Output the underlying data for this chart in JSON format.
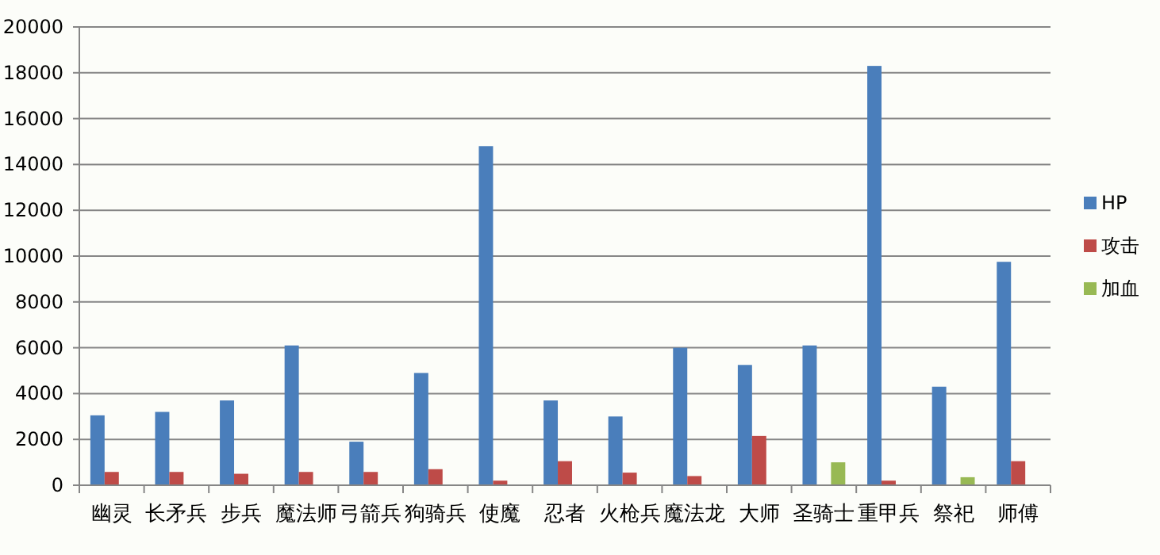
{
  "chart_data": {
    "type": "bar",
    "categories": [
      "幽灵",
      "长矛兵",
      "步兵",
      "魔法师",
      "弓箭兵",
      "狗骑兵",
      "使魔",
      "忍者",
      "火枪兵",
      "魔法龙",
      "大师",
      "圣骑士",
      "重甲兵",
      "祭祀",
      "师傅"
    ],
    "series": [
      {
        "name": "HP",
        "color": "#4a7ebb",
        "values": [
          3050,
          3200,
          3700,
          6100,
          1900,
          4900,
          14800,
          3700,
          3000,
          6000,
          5250,
          6100,
          18300,
          4300,
          9750
        ]
      },
      {
        "name": "攻击",
        "color": "#be4b48",
        "values": [
          580,
          580,
          500,
          580,
          580,
          700,
          200,
          1050,
          550,
          400,
          2150,
          null,
          200,
          null,
          1050
        ]
      },
      {
        "name": "加血",
        "color": "#98b954",
        "values": [
          null,
          null,
          null,
          null,
          null,
          null,
          null,
          null,
          null,
          null,
          null,
          1000,
          null,
          350,
          null
        ]
      }
    ],
    "ylim": [
      0,
      20000
    ],
    "yticks": [
      0,
      2000,
      4000,
      6000,
      8000,
      10000,
      12000,
      14000,
      16000,
      18000,
      20000
    ],
    "grid": "y",
    "legend": "right"
  }
}
